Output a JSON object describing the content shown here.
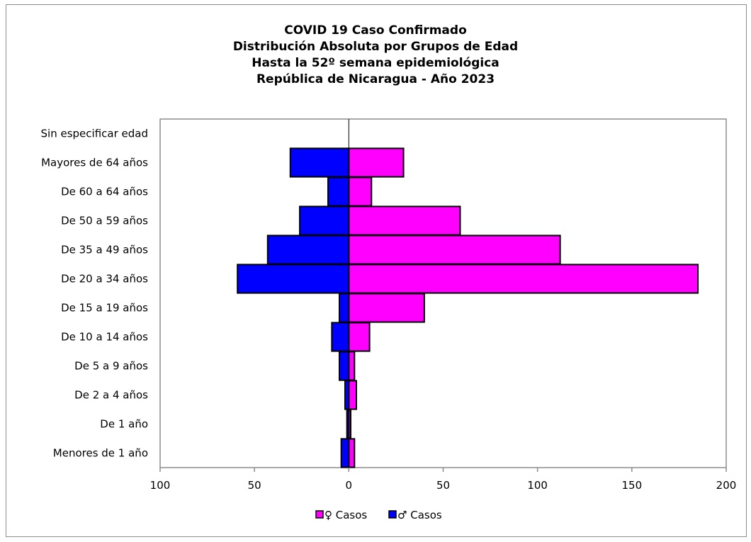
{
  "chart_data": {
    "type": "bar",
    "orientation": "horizontal",
    "title_lines": [
      "COVID 19 Caso Confirmado",
      "Distribución Absoluta por Grupos de Edad",
      "Hasta la 52º semana epidemiológica",
      "República de Nicaragua - Año 2023"
    ],
    "categories": [
      "Menores de 1 año",
      "De 1 año",
      "De 2 a 4 años",
      "De 5 a 9 años",
      "De 10 a 14 años",
      "De 15 a 19 años",
      "De 20 a 34 años",
      "De 35 a 49 años",
      "De 50 a 59 años",
      "De 60 a 64 años",
      "Mayores de 64 años",
      "Sin especificar edad"
    ],
    "series": [
      {
        "name": "♀ Casos",
        "color": "#ff00ff",
        "values": [
          3,
          1,
          4,
          3,
          11,
          40,
          185,
          112,
          59,
          12,
          29,
          0
        ]
      },
      {
        "name": "♂ Casos",
        "color": "#0000ff",
        "values": [
          -4,
          -1,
          -2,
          -5,
          -9,
          -5,
          -59,
          -43,
          -26,
          -11,
          -31,
          0
        ]
      }
    ],
    "xlim": [
      -100,
      200
    ],
    "x_ticks": [
      -100,
      -50,
      0,
      50,
      100,
      150,
      200
    ],
    "x_tick_labels": [
      "100",
      "50",
      "0",
      "50",
      "100",
      "150",
      "200"
    ],
    "grid": false,
    "legend_position": "bottom"
  }
}
